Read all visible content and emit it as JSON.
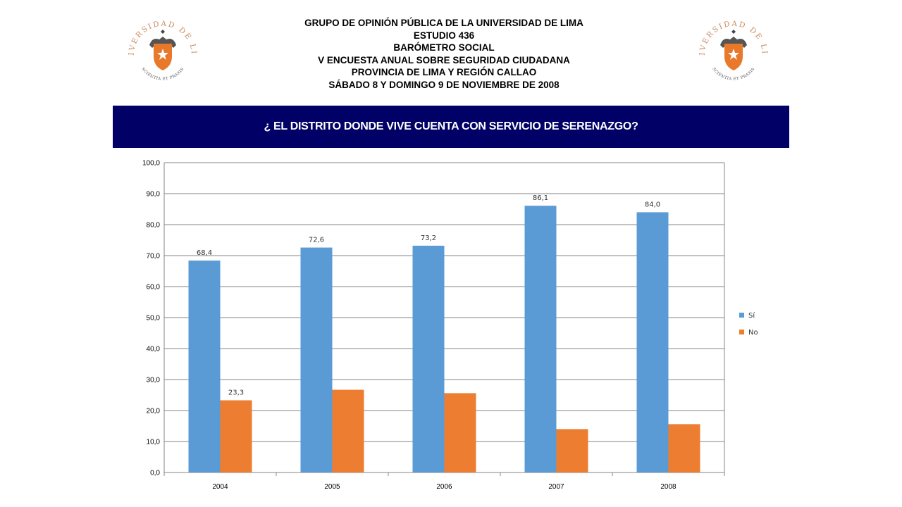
{
  "header": {
    "lines": [
      "GRUPO DE OPINIÓN PÚBLICA DE LA UNIVERSIDAD DE LIMA",
      "ESTUDIO 436",
      "BARÓMETRO SOCIAL",
      "V ENCUESTA ANUAL SOBRE SEGURIDAD CIUDADANA",
      "PROVINCIA DE LIMA Y REGIÓN CALLAO",
      "SÁBADO 8 Y DOMINGO 9 DE NOVIEMBRE DE 2008"
    ]
  },
  "logo": {
    "arc_text": "UNIVERSIDAD DE LIMA",
    "motto": "SCIENTIA ET PRAXIS",
    "color": "#e8782a",
    "ring_color": "#c98a5e"
  },
  "banner": {
    "title": "¿ EL DISTRITO DONDE VIVE CUENTA CON SERVICIO DE SERENAZGO?",
    "background": "#000066"
  },
  "chart_data": {
    "type": "bar",
    "categories": [
      "2004",
      "2005",
      "2006",
      "2007",
      "2008"
    ],
    "series": [
      {
        "name": "Sí",
        "color": "#5b9bd5",
        "values": [
          68.4,
          72.6,
          73.2,
          86.1,
          84.0
        ]
      },
      {
        "name": "No",
        "color": "#ed7d31",
        "values": [
          23.3,
          26.7,
          25.6,
          14.0,
          15.6
        ]
      }
    ],
    "data_labels": {
      "Sí": [
        "68,4",
        "72,6",
        "73,2",
        "86,1",
        "84,0"
      ],
      "No": [
        "23,3",
        "",
        "",
        "",
        ""
      ]
    },
    "ylim": [
      0,
      100
    ],
    "y_ticks": [
      "0,0",
      "10,0",
      "20,0",
      "30,0",
      "40,0",
      "50,0",
      "60,0",
      "70,0",
      "80,0",
      "90,0",
      "100,0"
    ],
    "grid": true,
    "legend_position": "right"
  }
}
